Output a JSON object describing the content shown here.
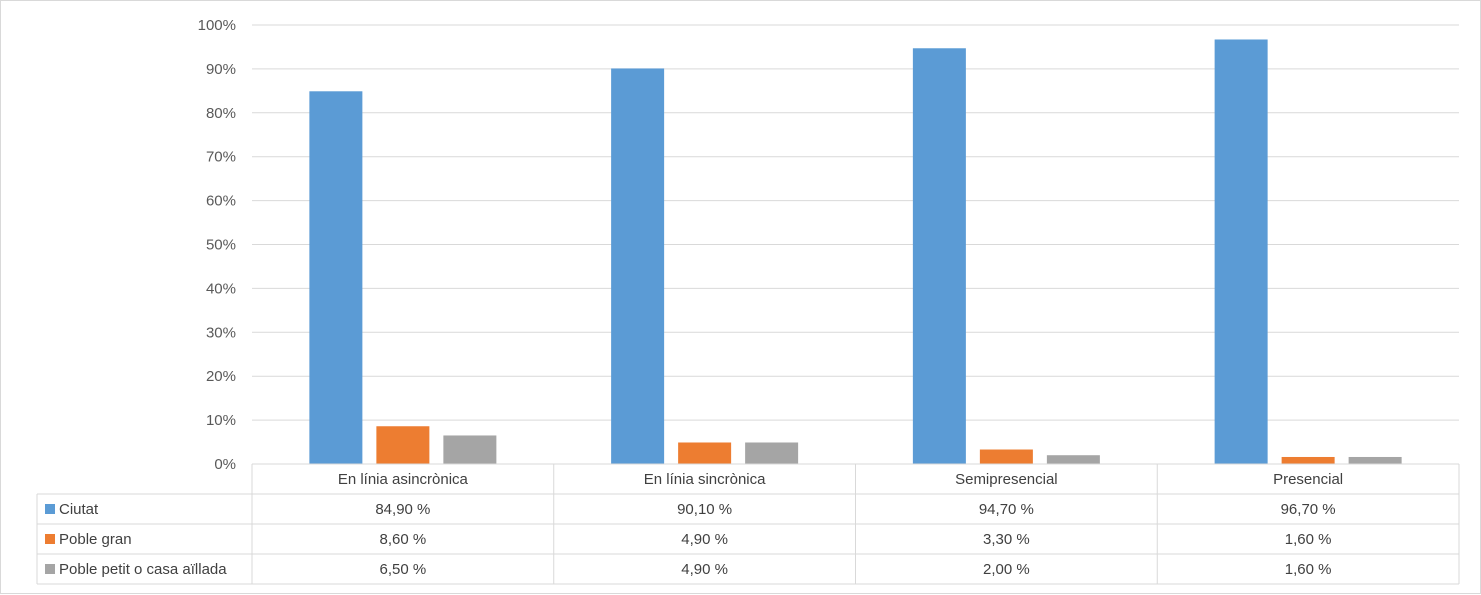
{
  "chart_data": {
    "type": "bar",
    "categories": [
      "En línia asincrònica",
      "En línia sincrònica",
      "Semipresencial",
      "Presencial"
    ],
    "series": [
      {
        "name": "Ciutat",
        "values": [
          84.9,
          90.1,
          94.7,
          96.7
        ],
        "color": "#5b9bd5",
        "labels": [
          "84,90 %",
          "90,10 %",
          "94,70 %",
          "96,70 %"
        ]
      },
      {
        "name": "Poble gran",
        "values": [
          8.6,
          4.9,
          3.3,
          1.6
        ],
        "color": "#ed7d31",
        "labels": [
          "8,60 %",
          "4,90 %",
          "3,30 %",
          "1,60 %"
        ]
      },
      {
        "name": "Poble petit o casa aïllada",
        "values": [
          6.5,
          4.9,
          2.0,
          1.6
        ],
        "color": "#a5a5a5",
        "labels": [
          "6,50 %",
          "4,90 %",
          "2,00 %",
          "1,60 %"
        ]
      }
    ],
    "ylim": [
      0,
      100
    ],
    "yticks": [
      "0%",
      "10%",
      "20%",
      "30%",
      "40%",
      "50%",
      "60%",
      "70%",
      "80%",
      "90%",
      "100%"
    ],
    "grid": true,
    "legend": "data-table"
  }
}
